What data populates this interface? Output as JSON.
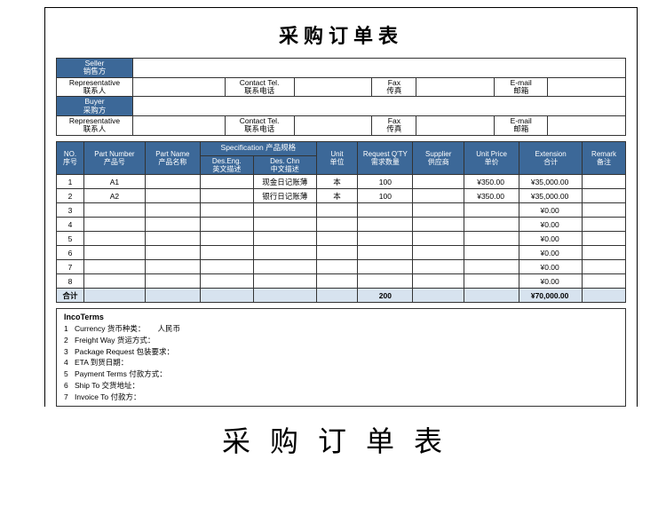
{
  "colors": {
    "header_blue": "#3c6898",
    "total_row_bg": "#d7e3ef",
    "border": "#333333",
    "text": "#000000",
    "bg": "#ffffff"
  },
  "title": "采购订单表",
  "title2": "采购订单表",
  "info": {
    "seller_en": "Seller",
    "seller_cn": "销售方",
    "seller_val": "",
    "rep_en": "Representative",
    "rep_cn": "联系人",
    "contact_en": "Contact Tel.",
    "contact_cn": "联系电话",
    "fax_en": "Fax",
    "fax_cn": "传真",
    "email_en": "E-mail",
    "email_cn": "邮箱",
    "buyer_en": "Buyer",
    "buyer_cn": "采购方",
    "buyer_val": ""
  },
  "columns": {
    "no": {
      "en": "NO.",
      "cn": "序号"
    },
    "pn": {
      "en": "Part Number",
      "cn": "产品号"
    },
    "pname": {
      "en": "Part Name",
      "cn": "产品名称"
    },
    "spec_title": "Specification  产品规格",
    "spec_en": {
      "en": "Des.Eng.",
      "cn": "英文描述"
    },
    "spec_cn": {
      "en": "Des. Chn",
      "cn": "中文描述"
    },
    "unit": {
      "en": "Unit",
      "cn": "单位"
    },
    "qty": {
      "en": "Request Q'TY",
      "cn": "需求数量"
    },
    "supplier": {
      "en": "Supplier",
      "cn": "供应商"
    },
    "price": {
      "en": "Unit Price",
      "cn": "单价"
    },
    "ext": {
      "en": "Extension",
      "cn": "合计"
    },
    "remark": {
      "en": "Remark",
      "cn": "备注"
    }
  },
  "rows": [
    {
      "no": "1",
      "pn": "A1",
      "pname": "",
      "deseng": "",
      "deschn": "现金日记账薄",
      "unit": "本",
      "qty": "100",
      "supplier": "",
      "price": "¥350.00",
      "ext": "¥35,000.00",
      "remark": ""
    },
    {
      "no": "2",
      "pn": "A2",
      "pname": "",
      "deseng": "",
      "deschn": "银行日记账薄",
      "unit": "本",
      "qty": "100",
      "supplier": "",
      "price": "¥350.00",
      "ext": "¥35,000.00",
      "remark": ""
    },
    {
      "no": "3",
      "pn": "",
      "pname": "",
      "deseng": "",
      "deschn": "",
      "unit": "",
      "qty": "",
      "supplier": "",
      "price": "",
      "ext": "¥0.00",
      "remark": ""
    },
    {
      "no": "4",
      "pn": "",
      "pname": "",
      "deseng": "",
      "deschn": "",
      "unit": "",
      "qty": "",
      "supplier": "",
      "price": "",
      "ext": "¥0.00",
      "remark": ""
    },
    {
      "no": "5",
      "pn": "",
      "pname": "",
      "deseng": "",
      "deschn": "",
      "unit": "",
      "qty": "",
      "supplier": "",
      "price": "",
      "ext": "¥0.00",
      "remark": ""
    },
    {
      "no": "6",
      "pn": "",
      "pname": "",
      "deseng": "",
      "deschn": "",
      "unit": "",
      "qty": "",
      "supplier": "",
      "price": "",
      "ext": "¥0.00",
      "remark": ""
    },
    {
      "no": "7",
      "pn": "",
      "pname": "",
      "deseng": "",
      "deschn": "",
      "unit": "",
      "qty": "",
      "supplier": "",
      "price": "",
      "ext": "¥0.00",
      "remark": ""
    },
    {
      "no": "8",
      "pn": "",
      "pname": "",
      "deseng": "",
      "deschn": "",
      "unit": "",
      "qty": "",
      "supplier": "",
      "price": "",
      "ext": "¥0.00",
      "remark": ""
    }
  ],
  "total": {
    "label": "合计",
    "qty": "200",
    "ext": "¥70,000.00"
  },
  "incoterms": {
    "title": "IncoTerms",
    "lines": [
      {
        "n": "1",
        "t": "Currency 货币种类：",
        "v": "人民币"
      },
      {
        "n": "2",
        "t": "Freight Way 货运方式：",
        "v": ""
      },
      {
        "n": "3",
        "t": "Package Request 包装要求：",
        "v": ""
      },
      {
        "n": "4",
        "t": "ETA 到货日期：",
        "v": ""
      },
      {
        "n": "5",
        "t": "Payment Terms 付款方式：",
        "v": ""
      },
      {
        "n": "6",
        "t": "Ship To 交货地址：",
        "v": ""
      },
      {
        "n": "7",
        "t": "Invoice To 付款方：",
        "v": ""
      }
    ]
  }
}
